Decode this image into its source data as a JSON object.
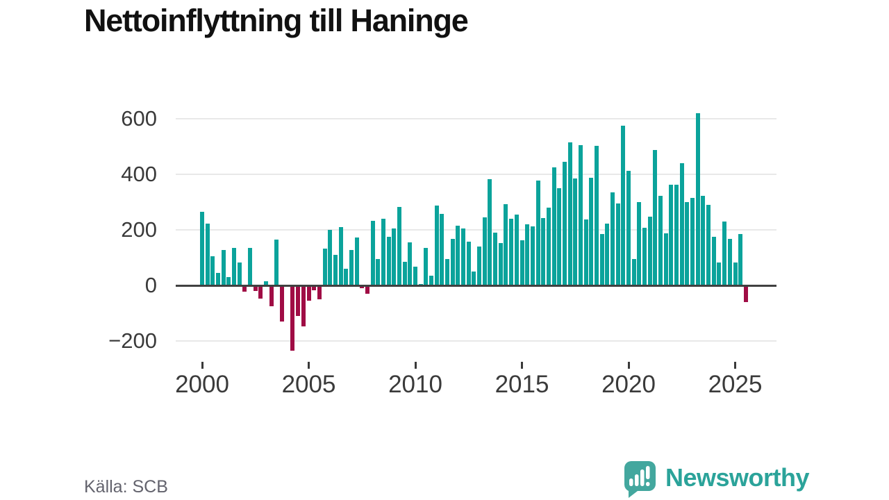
{
  "header": {
    "title": "Nettoinflyttning till Haninge"
  },
  "source": {
    "label": "Källa: SCB"
  },
  "logo": {
    "text": "Newsworthy",
    "color": "#2ba39a",
    "icon": "speech-bubble-barchart-exclamation"
  },
  "colors": {
    "positive_bar": "#0ba39b",
    "negative_bar": "#a00d45",
    "grid": "#e8e8e8",
    "zero_line": "#404040",
    "axis_text": "#3a3a3a",
    "title_text": "#111111",
    "source_text": "#63636d"
  },
  "chart_data": {
    "type": "bar",
    "title": "Nettoinflyttning till Haninge",
    "source": "Källa: SCB",
    "frequency": "quarterly",
    "xlabel": "",
    "ylabel": "",
    "ylim": [
      -260,
      650
    ],
    "grid": true,
    "legend": false,
    "y_ticks": [
      600,
      400,
      200,
      0,
      -200
    ],
    "y_tick_labels": [
      "600",
      "400",
      "200",
      "0",
      "−200"
    ],
    "x_tick_years": [
      2000,
      2005,
      2010,
      2015,
      2020,
      2025
    ],
    "x_tick_labels": [
      "2000",
      "2005",
      "2010",
      "2015",
      "2020",
      "2025"
    ],
    "categories": [
      "2000Q1",
      "2000Q2",
      "2000Q3",
      "2000Q4",
      "2001Q1",
      "2001Q2",
      "2001Q3",
      "2001Q4",
      "2002Q1",
      "2002Q2",
      "2002Q3",
      "2002Q4",
      "2003Q1",
      "2003Q2",
      "2003Q3",
      "2003Q4",
      "2004Q1",
      "2004Q2",
      "2004Q3",
      "2004Q4",
      "2005Q1",
      "2005Q2",
      "2005Q3",
      "2005Q4",
      "2006Q1",
      "2006Q2",
      "2006Q3",
      "2006Q4",
      "2007Q1",
      "2007Q2",
      "2007Q3",
      "2007Q4",
      "2008Q1",
      "2008Q2",
      "2008Q3",
      "2008Q4",
      "2009Q1",
      "2009Q2",
      "2009Q3",
      "2009Q4",
      "2010Q1",
      "2010Q2",
      "2010Q3",
      "2010Q4",
      "2011Q1",
      "2011Q2",
      "2011Q3",
      "2011Q4",
      "2012Q1",
      "2012Q2",
      "2012Q3",
      "2012Q4",
      "2013Q1",
      "2013Q2",
      "2013Q3",
      "2013Q4",
      "2014Q1",
      "2014Q2",
      "2014Q3",
      "2014Q4",
      "2015Q1",
      "2015Q2",
      "2015Q3",
      "2015Q4",
      "2016Q1",
      "2016Q2",
      "2016Q3",
      "2016Q4",
      "2017Q1",
      "2017Q2",
      "2017Q3",
      "2017Q4",
      "2018Q1",
      "2018Q2",
      "2018Q3",
      "2018Q4",
      "2019Q1",
      "2019Q2",
      "2019Q3",
      "2019Q4",
      "2020Q1",
      "2020Q2",
      "2020Q3",
      "2020Q4",
      "2021Q1",
      "2021Q2",
      "2021Q3",
      "2021Q4",
      "2022Q1",
      "2022Q2",
      "2022Q3",
      "2022Q4",
      "2023Q1",
      "2023Q2",
      "2023Q3",
      "2023Q4",
      "2024Q1",
      "2024Q2",
      "2024Q3",
      "2024Q4",
      "2025Q1",
      "2025Q2",
      "2025Q3"
    ],
    "values": [
      265,
      222,
      105,
      44,
      128,
      30,
      134,
      82,
      -23,
      134,
      -19,
      -48,
      15,
      -75,
      165,
      -130,
      -5,
      -235,
      -110,
      -148,
      -56,
      -18,
      -50,
      132,
      200,
      111,
      211,
      59,
      127,
      172,
      -10,
      -29,
      233,
      96,
      239,
      176,
      206,
      283,
      85,
      154,
      68,
      4,
      136,
      35,
      287,
      257,
      94,
      168,
      216,
      204,
      158,
      50,
      141,
      246,
      383,
      191,
      153,
      292,
      241,
      256,
      163,
      220,
      212,
      377,
      243,
      281,
      425,
      350,
      446,
      515,
      386,
      505,
      238,
      388,
      503,
      186,
      223,
      336,
      294,
      574,
      412,
      94,
      301,
      208,
      248,
      488,
      323,
      188,
      362,
      362,
      440,
      300,
      316,
      620,
      323,
      289,
      176,
      82,
      229,
      168,
      83,
      185,
      -60
    ]
  }
}
